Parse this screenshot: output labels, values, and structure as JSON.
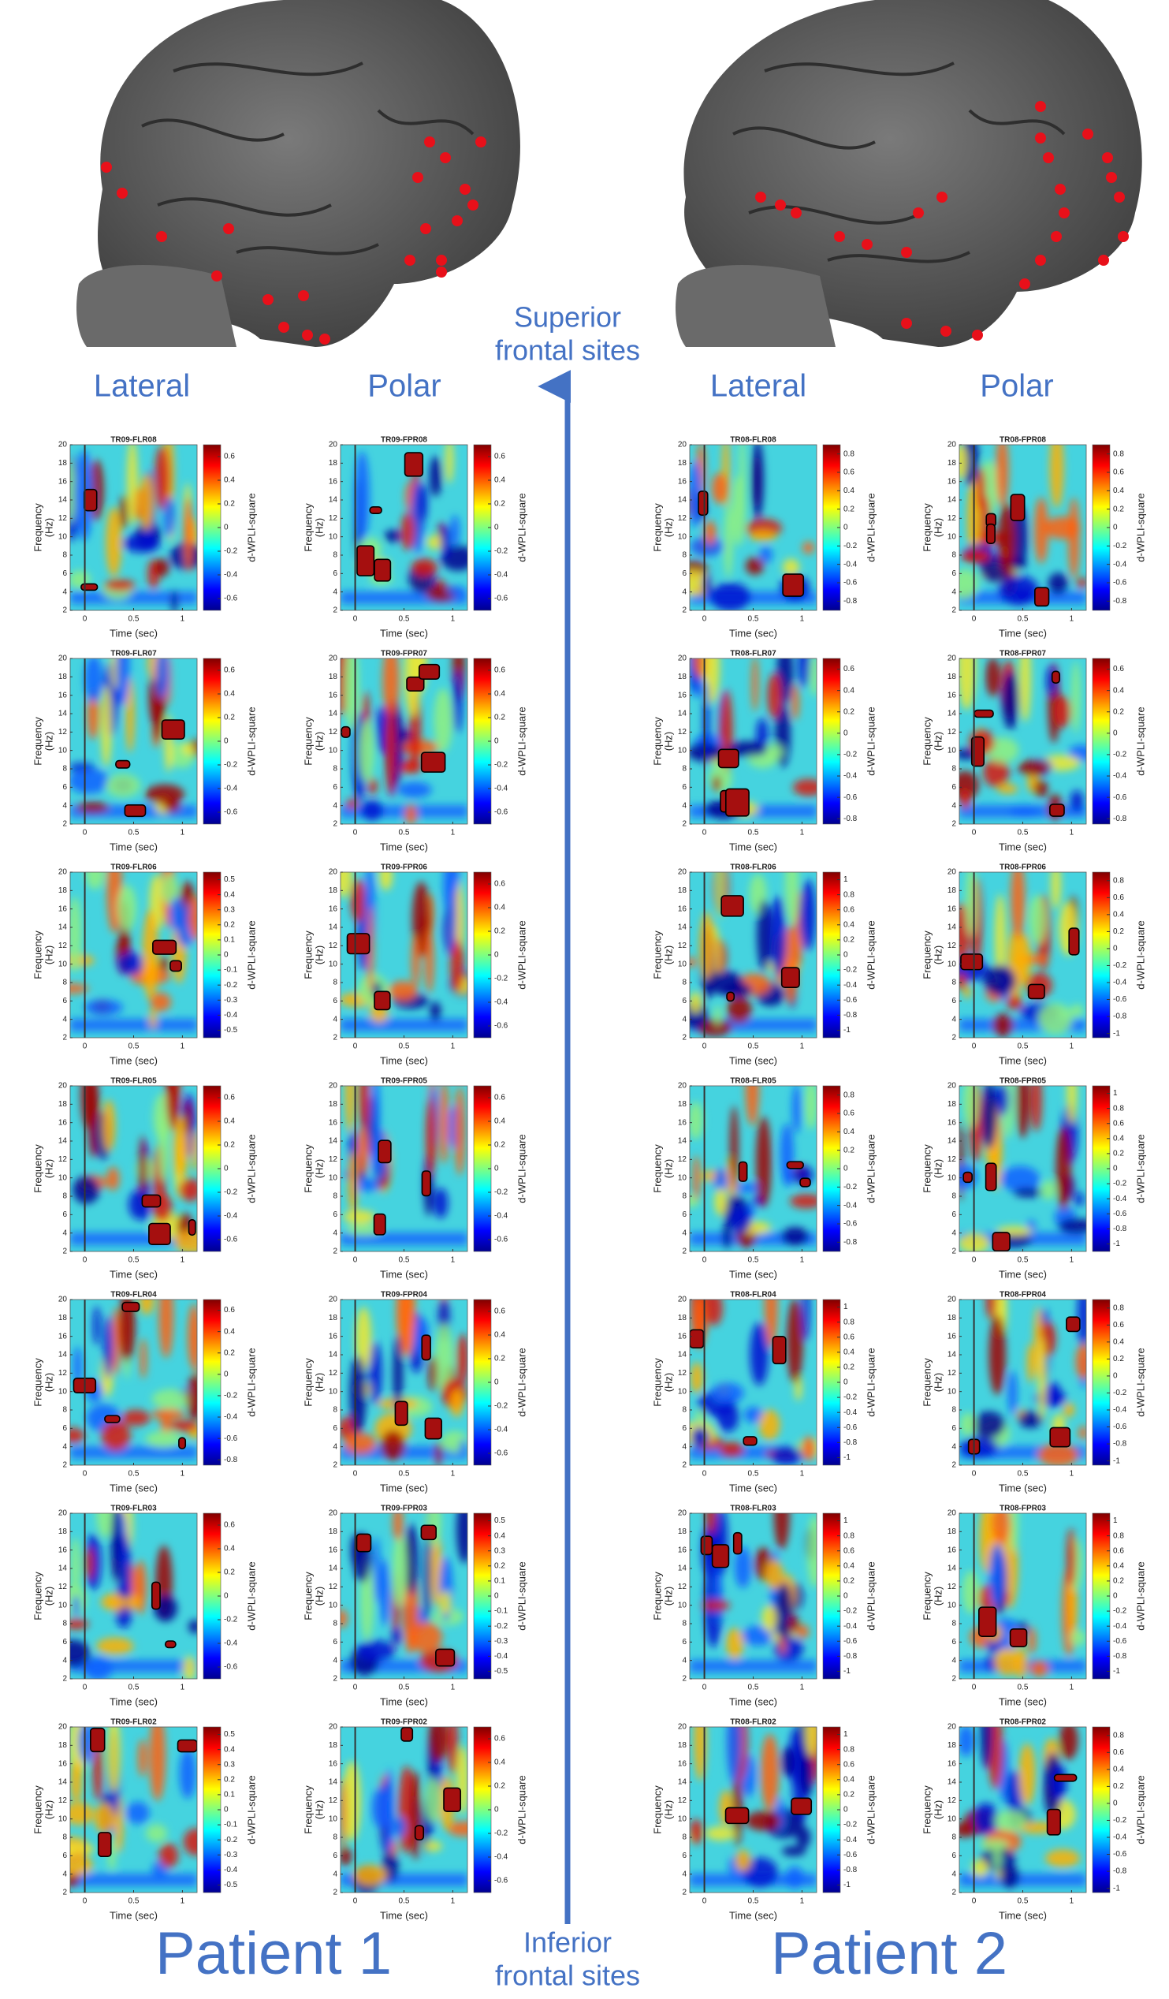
{
  "header": {
    "arrow_top": [
      "Superior",
      "frontal sites"
    ],
    "arrow_bottom": [
      "Inferior",
      "frontal sites"
    ]
  },
  "axes": {
    "y_label": [
      "Frequency",
      "(Hz)"
    ],
    "x_label": "Time (sec)",
    "colorbar_label": "d-WPLI-square",
    "ylim": [
      2,
      20
    ],
    "yticks": [
      2,
      4,
      6,
      8,
      10,
      12,
      14,
      16,
      18,
      20
    ],
    "xlim": [
      -0.15,
      1.15
    ],
    "xticks": [
      0,
      0.5,
      1
    ]
  },
  "patients": [
    {
      "name": "Patient 1",
      "columns": [
        {
          "label": "Lateral",
          "panels": [
            {
              "title": "TR09-FLR08",
              "clim": [
                -0.7,
                0.7
              ],
              "cticks": [
                0.6,
                0.4,
                0.2,
                0,
                -0.2,
                -0.4,
                -0.6
              ]
            },
            {
              "title": "TR09-FLR07",
              "clim": [
                -0.7,
                0.7
              ],
              "cticks": [
                0.6,
                0.4,
                0.2,
                0,
                -0.2,
                -0.4,
                -0.6
              ]
            },
            {
              "title": "TR09-FLR06",
              "clim": [
                -0.55,
                0.55
              ],
              "cticks": [
                0.5,
                0.4,
                0.3,
                0.2,
                0.1,
                0,
                -0.1,
                -0.2,
                -0.3,
                -0.4,
                -0.5
              ]
            },
            {
              "title": "TR09-FLR05",
              "clim": [
                -0.7,
                0.7
              ],
              "cticks": [
                0.6,
                0.4,
                0.2,
                0,
                -0.2,
                -0.4,
                -0.6
              ]
            },
            {
              "title": "TR09-FLR04",
              "clim": [
                -0.85,
                0.7
              ],
              "cticks": [
                0.6,
                0.4,
                0.2,
                0,
                -0.2,
                -0.4,
                -0.6,
                -0.8
              ]
            },
            {
              "title": "TR09-FLR03",
              "clim": [
                -0.7,
                0.7
              ],
              "cticks": [
                0.6,
                0.4,
                0.2,
                0,
                -0.2,
                -0.4,
                -0.6
              ]
            },
            {
              "title": "TR09-FLR02",
              "clim": [
                -0.55,
                0.55
              ],
              "cticks": [
                0.5,
                0.4,
                0.3,
                0.2,
                0.1,
                0,
                -0.1,
                -0.2,
                -0.3,
                -0.4,
                -0.5
              ]
            }
          ]
        },
        {
          "label": "Polar",
          "panels": [
            {
              "title": "TR09-FPR08",
              "clim": [
                -0.7,
                0.7
              ],
              "cticks": [
                0.6,
                0.4,
                0.2,
                0,
                -0.2,
                -0.4,
                -0.6
              ]
            },
            {
              "title": "TR09-FPR07",
              "clim": [
                -0.7,
                0.7
              ],
              "cticks": [
                0.6,
                0.4,
                0.2,
                0,
                -0.2,
                -0.4,
                -0.6
              ]
            },
            {
              "title": "TR09-FPR06",
              "clim": [
                -0.7,
                0.7
              ],
              "cticks": [
                0.6,
                0.4,
                0.2,
                0,
                -0.2,
                -0.4,
                -0.6
              ]
            },
            {
              "title": "TR09-FPR05",
              "clim": [
                -0.7,
                0.7
              ],
              "cticks": [
                0.6,
                0.4,
                0.2,
                0,
                -0.2,
                -0.4,
                -0.6
              ]
            },
            {
              "title": "TR09-FPR04",
              "clim": [
                -0.7,
                0.7
              ],
              "cticks": [
                0.6,
                0.4,
                0.2,
                0,
                -0.2,
                -0.4,
                -0.6
              ]
            },
            {
              "title": "TR09-FPR03",
              "clim": [
                -0.55,
                0.55
              ],
              "cticks": [
                0.5,
                0.4,
                0.3,
                0.2,
                0.1,
                0,
                -0.1,
                -0.2,
                -0.3,
                -0.4,
                -0.5
              ]
            },
            {
              "title": "TR09-FPR02",
              "clim": [
                -0.7,
                0.7
              ],
              "cticks": [
                0.6,
                0.4,
                0.2,
                0,
                -0.2,
                -0.4,
                -0.6
              ]
            }
          ]
        }
      ]
    },
    {
      "name": "Patient 2",
      "columns": [
        {
          "label": "Lateral",
          "panels": [
            {
              "title": "TR08-FLR08",
              "clim": [
                -0.9,
                0.9
              ],
              "cticks": [
                0.8,
                0.6,
                0.4,
                0.2,
                0,
                -0.2,
                -0.4,
                -0.6,
                -0.8
              ]
            },
            {
              "title": "TR08-FLR07",
              "clim": [
                -0.85,
                0.7
              ],
              "cticks": [
                0.6,
                0.4,
                0.2,
                0,
                -0.2,
                -0.4,
                -0.6,
                -0.8
              ]
            },
            {
              "title": "TR08-FLR06",
              "clim": [
                -1.1,
                1.1
              ],
              "cticks": [
                1,
                0.8,
                0.6,
                0.4,
                0.2,
                0,
                -0.2,
                -0.4,
                -0.6,
                -0.8,
                -1
              ]
            },
            {
              "title": "TR08-FLR05",
              "clim": [
                -0.9,
                0.9
              ],
              "cticks": [
                0.8,
                0.6,
                0.4,
                0.2,
                0,
                -0.2,
                -0.4,
                -0.6,
                -0.8
              ]
            },
            {
              "title": "TR08-FLR04",
              "clim": [
                -1.1,
                1.1
              ],
              "cticks": [
                1,
                0.8,
                0.6,
                0.4,
                0.2,
                0,
                -0.2,
                -0.4,
                -0.6,
                -0.8,
                -1
              ]
            },
            {
              "title": "TR08-FLR03",
              "clim": [
                -1.1,
                1.1
              ],
              "cticks": [
                1,
                0.8,
                0.6,
                0.4,
                0.2,
                0,
                -0.2,
                -0.4,
                -0.6,
                -0.8,
                -1
              ]
            },
            {
              "title": "TR08-FLR02",
              "clim": [
                -1.1,
                1.1
              ],
              "cticks": [
                1,
                0.8,
                0.6,
                0.4,
                0.2,
                0,
                -0.2,
                -0.4,
                -0.6,
                -0.8,
                -1
              ]
            }
          ]
        },
        {
          "label": "Polar",
          "panels": [
            {
              "title": "TR08-FPR08",
              "clim": [
                -0.9,
                0.9
              ],
              "cticks": [
                0.8,
                0.6,
                0.4,
                0.2,
                0,
                -0.2,
                -0.4,
                -0.6,
                -0.8
              ]
            },
            {
              "title": "TR08-FPR07",
              "clim": [
                -0.85,
                0.7
              ],
              "cticks": [
                0.6,
                0.4,
                0.2,
                0,
                -0.2,
                -0.4,
                -0.6,
                -0.8
              ]
            },
            {
              "title": "TR08-FPR06",
              "clim": [
                -1.05,
                0.9
              ],
              "cticks": [
                0.8,
                0.6,
                0.4,
                0.2,
                0,
                -0.2,
                -0.4,
                -0.6,
                -0.8,
                -1
              ]
            },
            {
              "title": "TR08-FPR05",
              "clim": [
                -1.1,
                1.1
              ],
              "cticks": [
                1,
                0.8,
                0.6,
                0.4,
                0.2,
                0,
                -0.2,
                -0.4,
                -0.6,
                -0.8,
                -1
              ]
            },
            {
              "title": "TR08-FPR04",
              "clim": [
                -1.05,
                0.9
              ],
              "cticks": [
                0.8,
                0.6,
                0.4,
                0.2,
                0,
                -0.2,
                -0.4,
                -0.6,
                -0.8,
                -1
              ]
            },
            {
              "title": "TR08-FPR03",
              "clim": [
                -1.1,
                1.1
              ],
              "cticks": [
                1,
                0.8,
                0.6,
                0.4,
                0.2,
                0,
                -0.2,
                -0.4,
                -0.6,
                -0.8,
                -1
              ]
            },
            {
              "title": "TR08-FPR02",
              "clim": [
                -1.05,
                0.9
              ],
              "cticks": [
                0.8,
                0.6,
                0.4,
                0.2,
                0,
                -0.2,
                -0.4,
                -0.6,
                -0.8,
                -1
              ]
            }
          ]
        }
      ]
    }
  ]
}
